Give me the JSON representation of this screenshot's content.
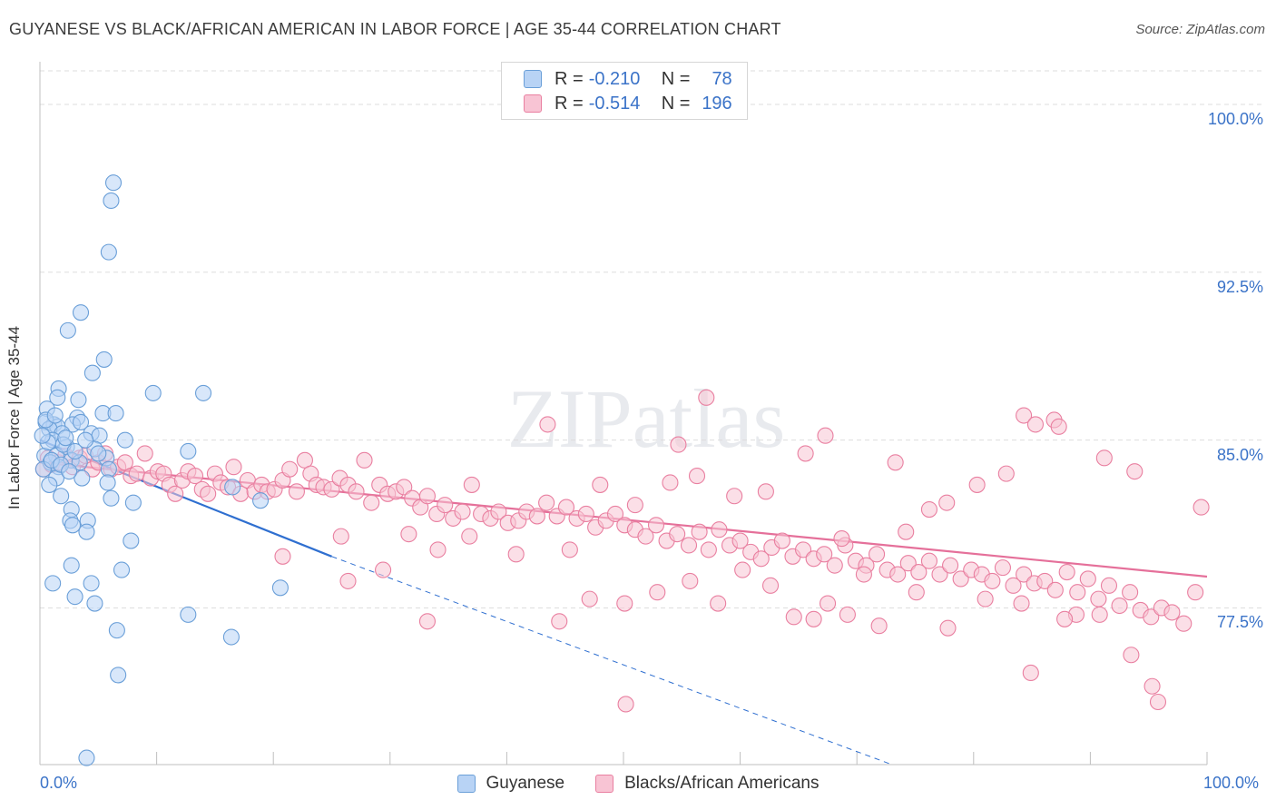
{
  "title": "GUYANESE VS BLACK/AFRICAN AMERICAN IN LABOR FORCE | AGE 35-44 CORRELATION CHART",
  "source": "Source: ZipAtlas.com",
  "watermark": "ZIPatlas",
  "legend_top": {
    "rows": [
      {
        "r_label": "R =",
        "r_value": "-0.210",
        "n_label": "N =",
        "n_value": "78"
      },
      {
        "r_label": "R =",
        "r_value": "-0.514",
        "n_label": "N =",
        "n_value": "196"
      }
    ]
  },
  "legend_bottom": [
    "Guyanese",
    "Blacks/African Americans"
  ],
  "x_tick_labels": {
    "left": "0.0%",
    "right": "100.0%"
  },
  "colors": {
    "blue_fill": "#b8d3f5",
    "blue_stroke": "#6a9fd8",
    "blue_line": "#2f6fd0",
    "pink_fill": "#f8c4d4",
    "pink_stroke": "#e97fa0",
    "pink_line": "#e5709a",
    "axis_text": "#3b73c8",
    "grid": "#dddddd"
  },
  "chart_data": {
    "type": "scatter",
    "title": "GUYANESE VS BLACK/AFRICAN AMERICAN IN LABOR FORCE | AGE 35-44 CORRELATION CHART",
    "xlabel": "",
    "ylabel": "In Labor Force | Age 35-44",
    "xlim": [
      0,
      100
    ],
    "ylim": [
      70.5,
      101.5
    ],
    "y_ticks": [
      {
        "value": 100.0,
        "label": "100.0%"
      },
      {
        "value": 92.5,
        "label": "92.5%"
      },
      {
        "value": 85.0,
        "label": "85.0%"
      },
      {
        "value": 77.5,
        "label": "77.5%"
      }
    ],
    "grid": true,
    "legend": "top-center",
    "series": [
      {
        "name": "Guyanese",
        "color": "#6a9fd8",
        "trend": {
          "x0": 0,
          "y0": 85.0,
          "x1": 25,
          "y1": 79.8,
          "dash_to_x": 73,
          "dash_to_y": 70.5
        },
        "points": [
          [
            6.3,
            96.5
          ],
          [
            6.1,
            95.7
          ],
          [
            5.9,
            93.4
          ],
          [
            3.5,
            90.7
          ],
          [
            2.4,
            89.9
          ],
          [
            5.5,
            88.6
          ],
          [
            4.5,
            88.0
          ],
          [
            1.6,
            87.3
          ],
          [
            1.5,
            86.9
          ],
          [
            3.3,
            86.8
          ],
          [
            9.7,
            87.1
          ],
          [
            14.0,
            87.1
          ],
          [
            0.6,
            86.4
          ],
          [
            3.2,
            86.0
          ],
          [
            5.4,
            86.2
          ],
          [
            6.5,
            86.2
          ],
          [
            0.5,
            85.8
          ],
          [
            1.2,
            85.7
          ],
          [
            1.5,
            85.6
          ],
          [
            2.8,
            85.7
          ],
          [
            3.5,
            85.8
          ],
          [
            0.8,
            85.5
          ],
          [
            1.9,
            85.3
          ],
          [
            4.4,
            85.3
          ],
          [
            5.1,
            85.2
          ],
          [
            7.3,
            85.0
          ],
          [
            1.1,
            85.0
          ],
          [
            2.3,
            84.7
          ],
          [
            4.7,
            84.6
          ],
          [
            12.7,
            84.5
          ],
          [
            0.4,
            84.3
          ],
          [
            1.4,
            84.3
          ],
          [
            2.7,
            84.1
          ],
          [
            0.9,
            84.0
          ],
          [
            3.4,
            84.0
          ],
          [
            5.7,
            84.2
          ],
          [
            0.3,
            83.7
          ],
          [
            1.6,
            83.8
          ],
          [
            5.9,
            83.7
          ],
          [
            1.4,
            83.3
          ],
          [
            3.6,
            83.3
          ],
          [
            5.8,
            83.1
          ],
          [
            0.8,
            83.0
          ],
          [
            16.5,
            82.9
          ],
          [
            1.8,
            82.5
          ],
          [
            6.1,
            82.4
          ],
          [
            8.0,
            82.2
          ],
          [
            18.9,
            82.3
          ],
          [
            2.7,
            81.9
          ],
          [
            2.6,
            81.4
          ],
          [
            2.8,
            81.2
          ],
          [
            4.1,
            81.4
          ],
          [
            4.0,
            80.9
          ],
          [
            7.8,
            80.5
          ],
          [
            2.7,
            79.4
          ],
          [
            7.0,
            79.2
          ],
          [
            1.1,
            78.6
          ],
          [
            4.4,
            78.6
          ],
          [
            20.6,
            78.4
          ],
          [
            3.0,
            78.0
          ],
          [
            4.7,
            77.7
          ],
          [
            12.7,
            77.2
          ],
          [
            6.6,
            76.5
          ],
          [
            16.4,
            76.2
          ],
          [
            6.7,
            74.5
          ],
          [
            4.0,
            70.8
          ],
          [
            0.5,
            85.9
          ],
          [
            2.0,
            84.8
          ],
          [
            1.0,
            84.1
          ],
          [
            3.0,
            84.5
          ],
          [
            2.2,
            85.1
          ],
          [
            0.7,
            84.9
          ],
          [
            1.8,
            83.9
          ],
          [
            3.9,
            85.0
          ],
          [
            0.2,
            85.2
          ],
          [
            2.5,
            83.6
          ],
          [
            5.0,
            84.4
          ],
          [
            1.3,
            86.1
          ]
        ]
      },
      {
        "name": "Blacks/African Americans",
        "color": "#e97fa0",
        "trend": {
          "x0": 0,
          "y0": 84.0,
          "x1": 100,
          "y1": 78.9
        },
        "points": [
          [
            0.3,
            83.7
          ],
          [
            0.7,
            84.2
          ],
          [
            1.0,
            83.9
          ],
          [
            1.6,
            84.0
          ],
          [
            2.2,
            84.3
          ],
          [
            2.8,
            83.8
          ],
          [
            3.4,
            84.2
          ],
          [
            3.9,
            84.3
          ],
          [
            4.5,
            83.7
          ],
          [
            5.0,
            84.0
          ],
          [
            5.6,
            84.4
          ],
          [
            6.1,
            83.7
          ],
          [
            6.7,
            83.8
          ],
          [
            7.3,
            84.0
          ],
          [
            7.8,
            83.4
          ],
          [
            8.3,
            83.5
          ],
          [
            9.0,
            84.4
          ],
          [
            9.5,
            83.3
          ],
          [
            10.1,
            83.6
          ],
          [
            10.6,
            83.5
          ],
          [
            11.1,
            83.0
          ],
          [
            11.6,
            82.6
          ],
          [
            12.2,
            83.2
          ],
          [
            12.7,
            83.6
          ],
          [
            13.3,
            83.4
          ],
          [
            13.9,
            82.8
          ],
          [
            14.4,
            82.6
          ],
          [
            15.0,
            83.5
          ],
          [
            15.5,
            83.1
          ],
          [
            16.1,
            82.9
          ],
          [
            16.6,
            83.8
          ],
          [
            17.2,
            82.6
          ],
          [
            17.8,
            83.2
          ],
          [
            18.4,
            82.7
          ],
          [
            19.0,
            83.0
          ],
          [
            19.5,
            82.7
          ],
          [
            20.1,
            82.8
          ],
          [
            20.8,
            83.2
          ],
          [
            21.4,
            83.7
          ],
          [
            22.0,
            82.7
          ],
          [
            22.7,
            84.1
          ],
          [
            23.2,
            83.5
          ],
          [
            23.7,
            83.0
          ],
          [
            24.3,
            82.9
          ],
          [
            25.0,
            82.8
          ],
          [
            25.7,
            83.3
          ],
          [
            26.4,
            83.0
          ],
          [
            27.1,
            82.7
          ],
          [
            27.8,
            84.1
          ],
          [
            28.4,
            82.2
          ],
          [
            29.1,
            83.0
          ],
          [
            29.8,
            82.6
          ],
          [
            30.5,
            82.7
          ],
          [
            31.2,
            82.9
          ],
          [
            31.9,
            82.4
          ],
          [
            32.6,
            82.0
          ],
          [
            33.2,
            82.5
          ],
          [
            34.0,
            81.7
          ],
          [
            34.7,
            82.1
          ],
          [
            35.4,
            81.5
          ],
          [
            36.2,
            81.8
          ],
          [
            37.0,
            83.0
          ],
          [
            37.8,
            81.7
          ],
          [
            38.6,
            81.5
          ],
          [
            39.3,
            81.8
          ],
          [
            40.1,
            81.3
          ],
          [
            41.0,
            81.4
          ],
          [
            41.7,
            81.8
          ],
          [
            42.6,
            81.6
          ],
          [
            43.4,
            82.2
          ],
          [
            44.3,
            81.6
          ],
          [
            45.1,
            82.0
          ],
          [
            46.0,
            81.5
          ],
          [
            46.8,
            81.7
          ],
          [
            47.6,
            81.1
          ],
          [
            48.5,
            81.4
          ],
          [
            49.3,
            81.7
          ],
          [
            50.1,
            81.2
          ],
          [
            51.0,
            81.0
          ],
          [
            51.9,
            80.7
          ],
          [
            52.8,
            81.2
          ],
          [
            53.7,
            80.5
          ],
          [
            54.6,
            80.8
          ],
          [
            55.6,
            80.3
          ],
          [
            56.5,
            80.9
          ],
          [
            57.3,
            80.1
          ],
          [
            58.2,
            81.0
          ],
          [
            59.1,
            80.3
          ],
          [
            60.0,
            80.5
          ],
          [
            60.9,
            80.0
          ],
          [
            61.8,
            79.7
          ],
          [
            62.7,
            80.2
          ],
          [
            63.6,
            80.5
          ],
          [
            64.5,
            79.8
          ],
          [
            65.4,
            80.1
          ],
          [
            66.3,
            79.7
          ],
          [
            67.2,
            79.9
          ],
          [
            68.1,
            79.4
          ],
          [
            69.0,
            80.3
          ],
          [
            69.9,
            79.6
          ],
          [
            70.8,
            79.4
          ],
          [
            71.7,
            79.9
          ],
          [
            72.6,
            79.2
          ],
          [
            73.5,
            79.0
          ],
          [
            74.4,
            79.5
          ],
          [
            75.3,
            79.1
          ],
          [
            76.2,
            79.6
          ],
          [
            77.1,
            79.0
          ],
          [
            78.0,
            79.4
          ],
          [
            78.9,
            78.8
          ],
          [
            79.8,
            79.2
          ],
          [
            80.7,
            79.0
          ],
          [
            81.6,
            78.7
          ],
          [
            82.5,
            79.3
          ],
          [
            83.4,
            78.5
          ],
          [
            84.3,
            79.0
          ],
          [
            85.2,
            78.6
          ],
          [
            86.1,
            78.7
          ],
          [
            87.0,
            78.3
          ],
          [
            88.0,
            79.1
          ],
          [
            88.9,
            78.2
          ],
          [
            89.8,
            78.8
          ],
          [
            90.7,
            77.9
          ],
          [
            91.6,
            78.5
          ],
          [
            92.5,
            77.6
          ],
          [
            93.4,
            78.2
          ],
          [
            94.3,
            77.4
          ],
          [
            95.2,
            77.1
          ],
          [
            96.1,
            77.5
          ],
          [
            97.0,
            77.3
          ],
          [
            98.0,
            76.8
          ],
          [
            99.0,
            78.2
          ],
          [
            43.5,
            85.7
          ],
          [
            54.7,
            84.8
          ],
          [
            57.1,
            86.9
          ],
          [
            65.6,
            84.4
          ],
          [
            67.3,
            85.2
          ],
          [
            73.3,
            84.0
          ],
          [
            84.3,
            86.1
          ],
          [
            85.3,
            85.7
          ],
          [
            86.9,
            85.9
          ],
          [
            87.3,
            85.6
          ],
          [
            91.2,
            84.2
          ],
          [
            93.8,
            83.6
          ],
          [
            99.5,
            82.0
          ],
          [
            82.8,
            83.5
          ],
          [
            80.3,
            83.0
          ],
          [
            77.7,
            82.2
          ],
          [
            76.2,
            81.9
          ],
          [
            74.2,
            80.9
          ],
          [
            68.7,
            80.6
          ],
          [
            70.6,
            79.0
          ],
          [
            62.2,
            82.7
          ],
          [
            59.5,
            82.5
          ],
          [
            56.3,
            83.4
          ],
          [
            54.0,
            83.1
          ],
          [
            51.0,
            82.1
          ],
          [
            48.0,
            83.0
          ],
          [
            45.4,
            80.1
          ],
          [
            40.8,
            79.9
          ],
          [
            36.8,
            80.7
          ],
          [
            34.1,
            80.1
          ],
          [
            31.6,
            80.8
          ],
          [
            29.4,
            79.2
          ],
          [
            26.4,
            78.7
          ],
          [
            25.8,
            80.7
          ],
          [
            20.8,
            79.8
          ],
          [
            33.2,
            76.9
          ],
          [
            50.1,
            77.7
          ],
          [
            55.7,
            78.7
          ],
          [
            60.2,
            79.2
          ],
          [
            62.6,
            78.5
          ],
          [
            64.6,
            77.1
          ],
          [
            67.5,
            77.7
          ],
          [
            69.2,
            77.2
          ],
          [
            71.9,
            76.7
          ],
          [
            75.1,
            78.2
          ],
          [
            77.8,
            76.6
          ],
          [
            81.0,
            77.9
          ],
          [
            84.1,
            77.7
          ],
          [
            88.8,
            77.2
          ],
          [
            90.8,
            77.2
          ],
          [
            93.5,
            75.4
          ],
          [
            95.3,
            74.0
          ],
          [
            95.8,
            73.3
          ],
          [
            84.9,
            74.6
          ],
          [
            50.2,
            73.2
          ],
          [
            44.5,
            76.9
          ],
          [
            47.1,
            77.9
          ],
          [
            52.9,
            78.2
          ],
          [
            58.1,
            77.7
          ],
          [
            66.3,
            77.0
          ],
          [
            87.8,
            77.0
          ]
        ]
      }
    ]
  }
}
